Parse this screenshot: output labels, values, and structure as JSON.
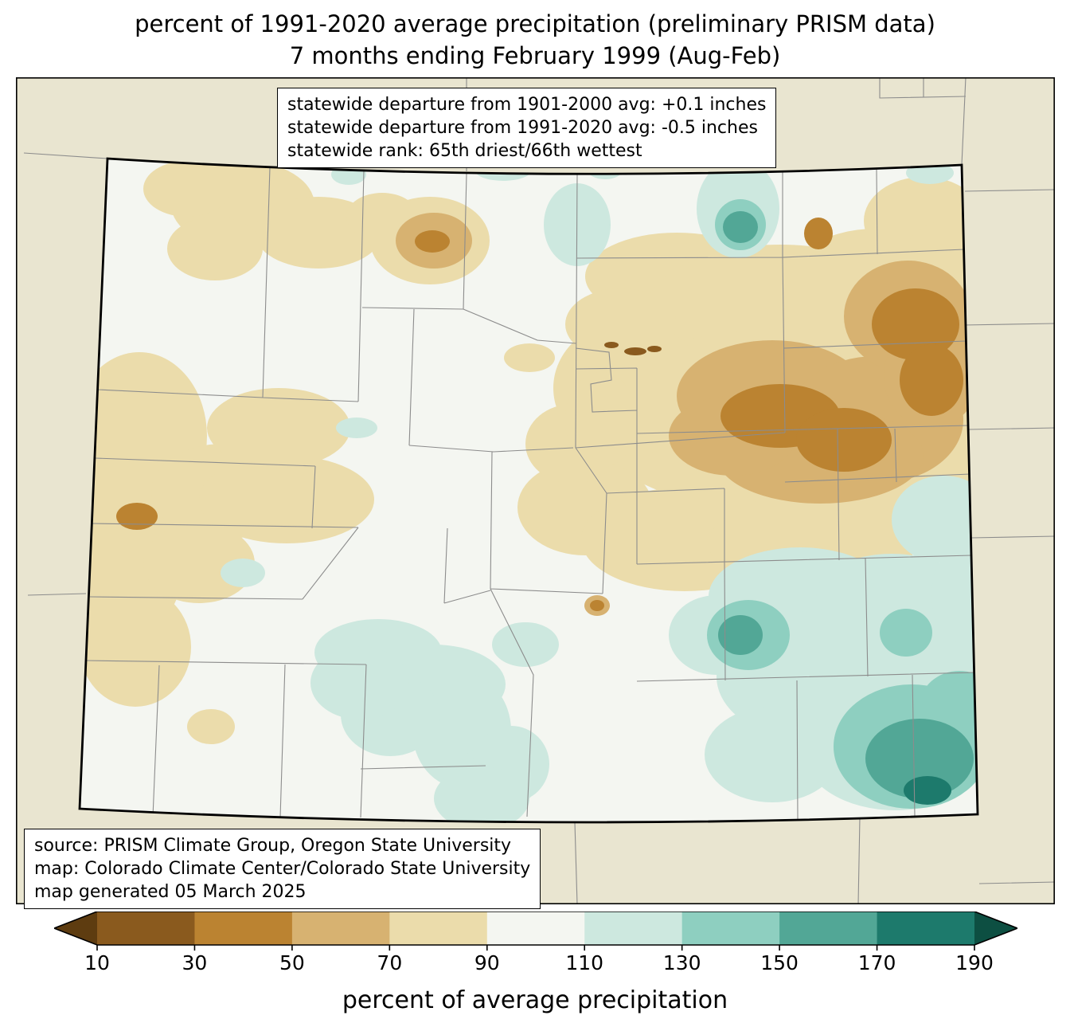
{
  "title": {
    "line1": "percent of 1991-2020 average precipitation (preliminary PRISM data)",
    "line2": "7 months ending February 1999 (Aug-Feb)"
  },
  "stats_box": {
    "line1": "statewide departure from 1901-2000 avg: +0.1 inches",
    "line2": "statewide departure from 1991-2020 avg: -0.5 inches",
    "line3": "statewide rank: 65th driest/66th wettest"
  },
  "source_box": {
    "line1": "source: PRISM Climate Group, Oregon State University",
    "line2": "map: Colorado Climate Center/Colorado State University",
    "line3": "map generated 05 March 2025"
  },
  "colorbar": {
    "label": "percent of average precipitation",
    "ticks": [
      10,
      30,
      50,
      70,
      90,
      110,
      130,
      150,
      170,
      190
    ],
    "under_color": "#5e3c10",
    "over_color": "#0d4f42",
    "segment_colors": [
      "#8a5a1e",
      "#bb8331",
      "#d7b271",
      "#ebdcab",
      "#f4f6f1",
      "#cde8df",
      "#8ecfc0",
      "#52a796",
      "#1d7a6c"
    ],
    "segment_ranges": [
      "10-30",
      "30-50",
      "50-70",
      "70-90",
      "90-110",
      "110-130",
      "130-150",
      "150-170",
      "170-190"
    ]
  },
  "map": {
    "region": "Colorado",
    "background_color": "#e9e5d0",
    "state_fill_color": "#f4f6f1",
    "state_border_color": "#000000",
    "county_line_color": "#8c8c8c"
  }
}
